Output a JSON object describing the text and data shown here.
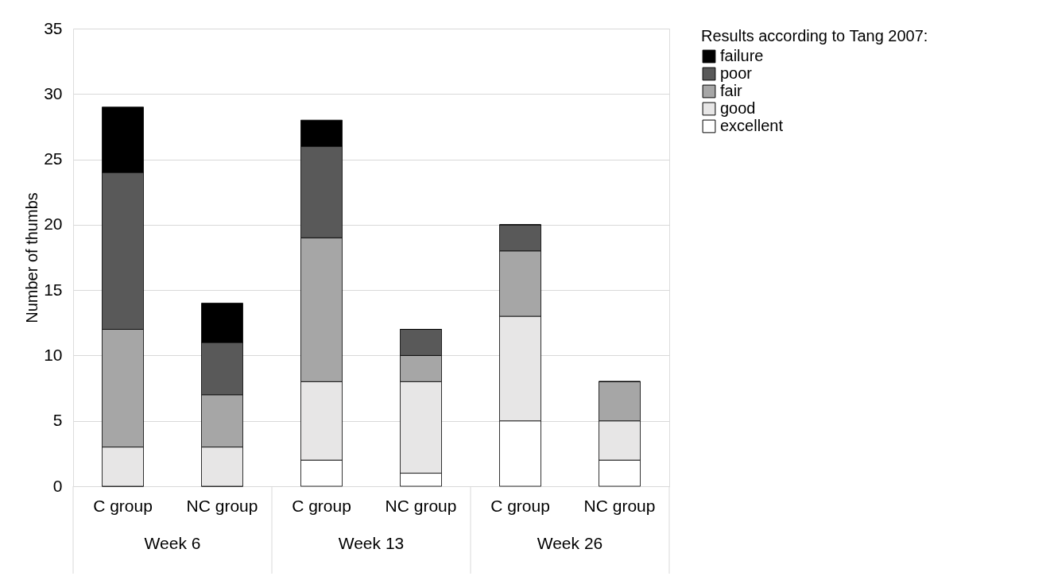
{
  "chart_data": {
    "type": "bar",
    "stacked": true,
    "categories": [
      "C group",
      "NC group",
      "C group",
      "NC group",
      "C group",
      "NC group"
    ],
    "annotations": [
      "Week 6",
      "Week 13",
      "Week 26"
    ],
    "ylabel": "Number of thumbs",
    "legend_title": "Results according to Tang 2007:",
    "series": [
      {
        "name": "excellent",
        "color": "#ffffff",
        "values": [
          0,
          0,
          2,
          1,
          5,
          2
        ]
      },
      {
        "name": "good",
        "color": "#e7e6e6",
        "values": [
          3,
          3,
          6,
          7,
          8,
          3
        ]
      },
      {
        "name": "fair",
        "color": "#a6a6a6",
        "values": [
          9,
          4,
          11,
          2,
          5,
          3
        ]
      },
      {
        "name": "poor",
        "color": "#595959",
        "values": [
          12,
          4,
          7,
          2,
          2,
          0
        ]
      },
      {
        "name": "failure",
        "color": "#000000",
        "values": [
          5,
          3,
          2,
          0,
          0,
          0
        ]
      }
    ],
    "ylim": [
      0,
      35
    ],
    "yticks": [
      0,
      5,
      10,
      15,
      20,
      25,
      30,
      35
    ],
    "grid": "y",
    "legend": "right"
  }
}
